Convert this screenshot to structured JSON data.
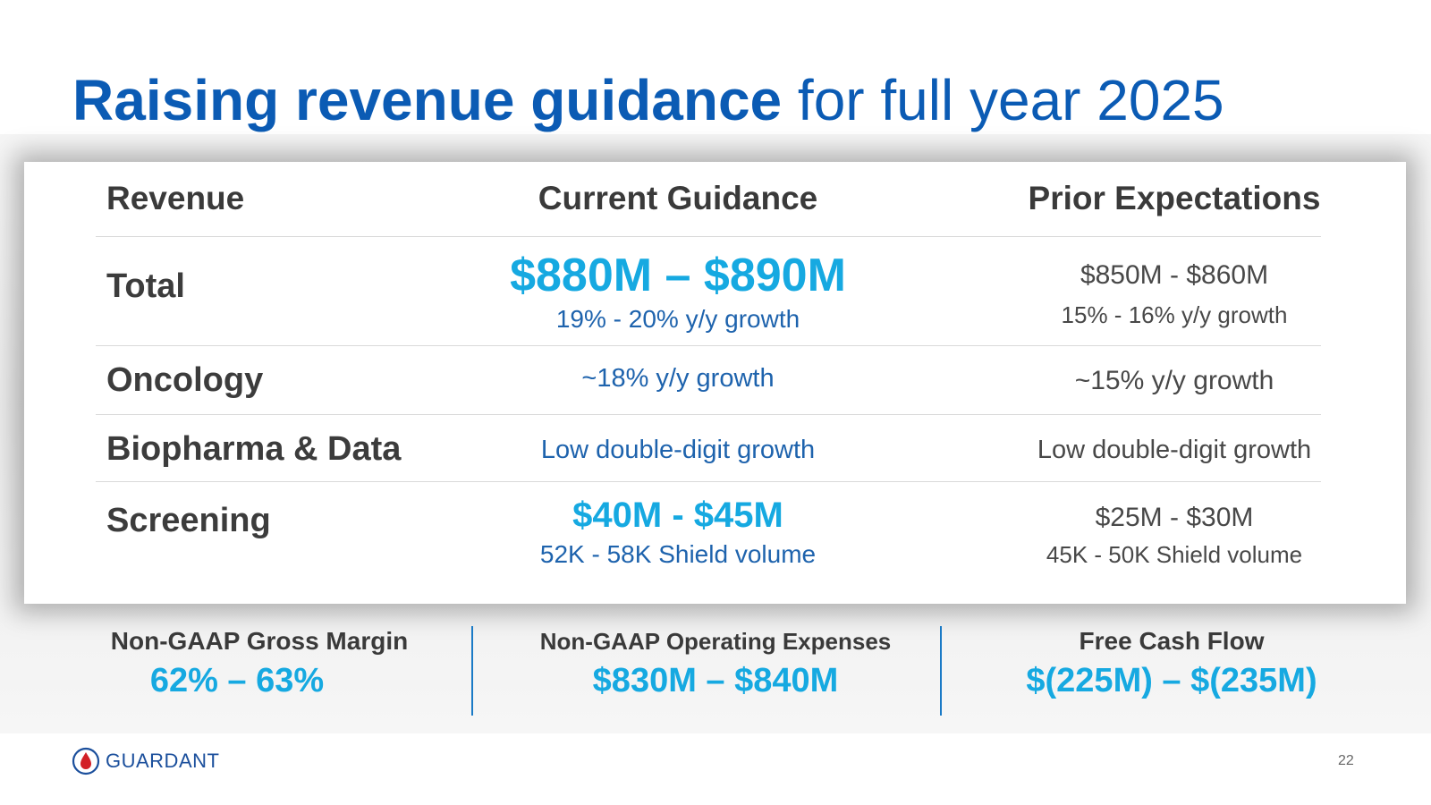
{
  "slide": {
    "title_bold": "Raising revenue guidance",
    "title_rest": "for full year 2025",
    "page_number": "22"
  },
  "table": {
    "headers": [
      "Revenue",
      "Current Guidance",
      "Prior Expectations"
    ],
    "rows": [
      {
        "label": "Total",
        "current_main": "$880M – $890M",
        "current_sub": "19% - 20% y/y growth",
        "prior_main": "$850M - $860M",
        "prior_sub": "15% - 16% y/y growth"
      },
      {
        "label": "Oncology",
        "current_main": "~18% y/y growth",
        "prior_main": "~15% y/y growth"
      },
      {
        "label": "Biopharma & Data",
        "current_main": "Low double-digit growth",
        "prior_main": "Low double-digit growth"
      },
      {
        "label": "Screening",
        "current_main": "$40M - $45M",
        "current_sub": "52K - 58K Shield volume",
        "prior_main": "$25M - $30M",
        "prior_sub": "45K - 50K Shield volume"
      }
    ]
  },
  "metrics": [
    {
      "label": "Non-GAAP Gross Margin",
      "value": "62% – 63%"
    },
    {
      "label": "Non-GAAP Operating Expenses",
      "value": "$830M – $840M"
    },
    {
      "label": "Free Cash Flow",
      "value": "$(225M) – $(235M)"
    }
  ],
  "logo": {
    "text": "GUARDANT",
    "icon": "blood-drop-icon"
  },
  "colors": {
    "title_blue": "#0b5bb4",
    "highlight_cyan": "#16a9e1",
    "body_blue": "#1e63ad",
    "text_dark": "#3c3c3c",
    "logo_red": "#d21f26"
  }
}
